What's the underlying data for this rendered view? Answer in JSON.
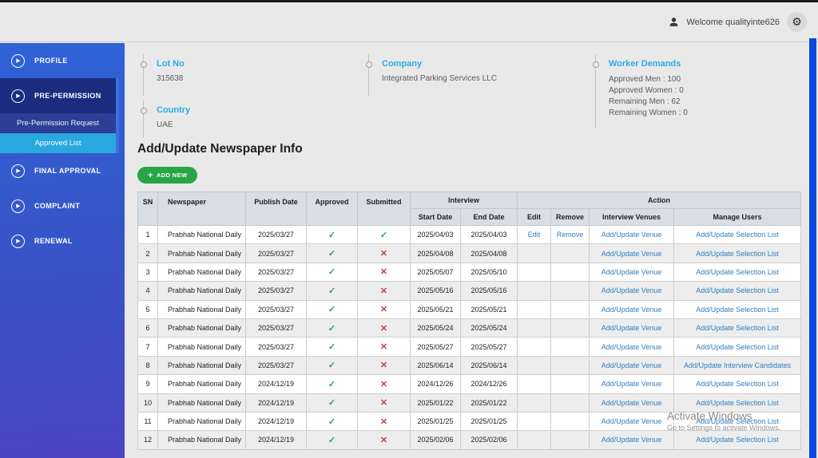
{
  "header": {
    "welcome_text": "Welcome qualityinte626",
    "settings_icon": "gear-icon",
    "user_icon": "person-icon"
  },
  "sidebar": {
    "items": [
      {
        "label": "PROFILE"
      },
      {
        "label": "PRE-PERMISSION",
        "active": true,
        "children": [
          {
            "label": "Pre-Permission Request"
          },
          {
            "label": "Approved List",
            "selected": true
          }
        ]
      },
      {
        "label": "FINAL APPROVAL"
      },
      {
        "label": "COMPLAINT"
      },
      {
        "label": "RENEWAL"
      }
    ]
  },
  "info": {
    "lot_no": {
      "label": "Lot No",
      "value": "315638"
    },
    "country": {
      "label": "Country",
      "value": "UAE"
    },
    "company": {
      "label": "Company",
      "value": "Integrated Parking Services LLC"
    },
    "worker_demands": {
      "label": "Worker Demands",
      "lines": [
        "Approved Men : 100",
        "Approved Women : 0",
        "Remaining Men : 62",
        "Remaining Women : 0"
      ]
    }
  },
  "main": {
    "title": "Add/Update Newspaper Info",
    "add_new_label": "ADD NEW"
  },
  "table": {
    "headers": {
      "sn": "SN",
      "newspaper": "Newspaper",
      "publish_date": "Publish Date",
      "approved": "Approved",
      "submitted": "Submitted",
      "interview": "Interview",
      "action": "Action",
      "start_date": "Start Date",
      "end_date": "End Date",
      "edit": "Edit",
      "remove": "Remove",
      "interview_venues": "Interview Venues",
      "manage_users": "Manage Users"
    },
    "rows": [
      {
        "sn": "1",
        "newspaper": "Prabhab National Daily",
        "publish_date": "2025/03/27",
        "approved": true,
        "submitted": true,
        "start_date": "2025/04/03",
        "end_date": "2025/04/03",
        "edit": "Edit",
        "remove": "Remove",
        "interview_venues": "Add/Update Venue",
        "manage_users": "Add/Update Selection List"
      },
      {
        "sn": "2",
        "newspaper": "Prabhab National Daily",
        "publish_date": "2025/03/27",
        "approved": true,
        "submitted": false,
        "start_date": "2025/04/08",
        "end_date": "2025/04/08",
        "edit": "",
        "remove": "",
        "interview_venues": "Add/Update Venue",
        "manage_users": "Add/Update Selection List"
      },
      {
        "sn": "3",
        "newspaper": "Prabhab National Daily",
        "publish_date": "2025/03/27",
        "approved": true,
        "submitted": false,
        "start_date": "2025/05/07",
        "end_date": "2025/05/10",
        "edit": "",
        "remove": "",
        "interview_venues": "Add/Update Venue",
        "manage_users": "Add/Update Selection List"
      },
      {
        "sn": "4",
        "newspaper": "Prabhab National Daily",
        "publish_date": "2025/03/27",
        "approved": true,
        "submitted": false,
        "start_date": "2025/05/16",
        "end_date": "2025/05/16",
        "edit": "",
        "remove": "",
        "interview_venues": "Add/Update Venue",
        "manage_users": "Add/Update Selection List"
      },
      {
        "sn": "5",
        "newspaper": "Prabhab National Daily",
        "publish_date": "2025/03/27",
        "approved": true,
        "submitted": false,
        "start_date": "2025/05/21",
        "end_date": "2025/05/21",
        "edit": "",
        "remove": "",
        "interview_venues": "Add/Update Venue",
        "manage_users": "Add/Update Selection List"
      },
      {
        "sn": "6",
        "newspaper": "Prabhab National Daily",
        "publish_date": "2025/03/27",
        "approved": true,
        "submitted": false,
        "start_date": "2025/05/24",
        "end_date": "2025/05/24",
        "edit": "",
        "remove": "",
        "interview_venues": "Add/Update Venue",
        "manage_users": "Add/Update Selection List"
      },
      {
        "sn": "7",
        "newspaper": "Prabhab National Daily",
        "publish_date": "2025/03/27",
        "approved": true,
        "submitted": false,
        "start_date": "2025/05/27",
        "end_date": "2025/05/27",
        "edit": "",
        "remove": "",
        "interview_venues": "Add/Update Venue",
        "manage_users": "Add/Update Selection List"
      },
      {
        "sn": "8",
        "newspaper": "Prabhab National Daily",
        "publish_date": "2025/03/27",
        "approved": true,
        "submitted": false,
        "start_date": "2025/06/14",
        "end_date": "2025/06/14",
        "edit": "",
        "remove": "",
        "interview_venues": "Add/Update Venue",
        "manage_users": "Add/Update Interview Candidates"
      },
      {
        "sn": "9",
        "newspaper": "Prabhab National Daily",
        "publish_date": "2024/12/19",
        "approved": true,
        "submitted": false,
        "start_date": "2024/12/26",
        "end_date": "2024/12/26",
        "edit": "",
        "remove": "",
        "interview_venues": "Add/Update Venue",
        "manage_users": "Add/Update Selection List"
      },
      {
        "sn": "10",
        "newspaper": "Prabhab National Daily",
        "publish_date": "2024/12/19",
        "approved": true,
        "submitted": false,
        "start_date": "2025/01/22",
        "end_date": "2025/01/22",
        "edit": "",
        "remove": "",
        "interview_venues": "Add/Update Venue",
        "manage_users": "Add/Update Selection List"
      },
      {
        "sn": "11",
        "newspaper": "Prabhab National Daily",
        "publish_date": "2024/12/19",
        "approved": true,
        "submitted": false,
        "start_date": "2025/01/25",
        "end_date": "2025/01/25",
        "edit": "",
        "remove": "",
        "interview_venues": "Add/Update Venue",
        "manage_users": "Add/Update Selection List"
      },
      {
        "sn": "12",
        "newspaper": "Prabhab National Daily",
        "publish_date": "2024/12/19",
        "approved": true,
        "submitted": false,
        "start_date": "2025/02/06",
        "end_date": "2025/02/06",
        "edit": "",
        "remove": "",
        "interview_venues": "Add/Update Venue",
        "manage_users": "Add/Update Selection List"
      }
    ]
  },
  "watermark": {
    "line1": "Activate Windows",
    "line2": "Go to Settings to activate Windows."
  },
  "colors": {
    "accent_cyan": "#29abe2",
    "link_blue": "#2f7ebe",
    "button_green": "#28a546",
    "check_green": "#27a35c",
    "cross_red": "#ce3c3c",
    "sidebar_top": "#2e63d6",
    "sidebar_bottom": "#4a44c0",
    "active_group_navy": "#1b2c7e",
    "selected_subitem_cyan": "#2aa9e0",
    "right_strip_blue": "#0b47da"
  }
}
